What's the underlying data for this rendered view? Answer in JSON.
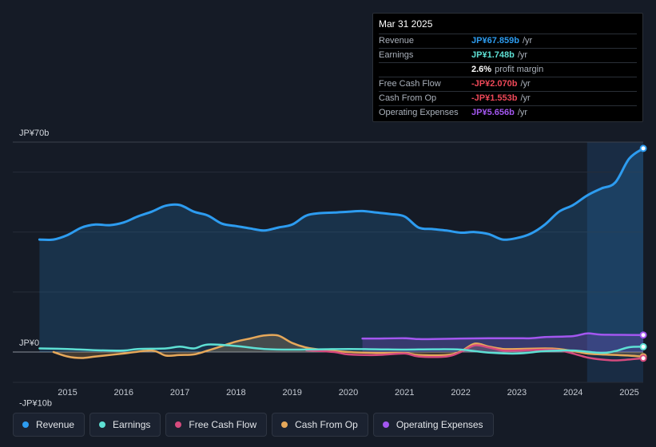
{
  "tooltip": {
    "date": "Mar 31 2025",
    "rows": [
      {
        "label": "Revenue",
        "value": "JP¥67.859b",
        "unit": "/yr",
        "color": "#2d9cf0"
      },
      {
        "label": "Earnings",
        "value": "JP¥1.748b",
        "unit": "/yr",
        "color": "#5ee0d4"
      },
      {
        "label": "",
        "value": "2.6%",
        "unit": "profit margin",
        "color": "#ffffff"
      },
      {
        "label": "Free Cash Flow",
        "value": "-JP¥2.070b",
        "unit": "/yr",
        "color": "#ee4858"
      },
      {
        "label": "Cash From Op",
        "value": "-JP¥1.553b",
        "unit": "/yr",
        "color": "#ee4858"
      },
      {
        "label": "Operating Expenses",
        "value": "JP¥5.656b",
        "unit": "/yr",
        "color": "#a357f0"
      }
    ]
  },
  "legend": [
    {
      "label": "Revenue",
      "color": "#2d9cf0"
    },
    {
      "label": "Earnings",
      "color": "#5ee0d4"
    },
    {
      "label": "Free Cash Flow",
      "color": "#d64b7e"
    },
    {
      "label": "Cash From Op",
      "color": "#e6a85a"
    },
    {
      "label": "Operating Expenses",
      "color": "#a357f0"
    }
  ],
  "chart_data": {
    "type": "line",
    "title": "",
    "xlabel": "",
    "ylabel": "",
    "ylim": [
      -10,
      70
    ],
    "y_tick_labels": [
      {
        "value": 70,
        "label": "JP¥70b"
      },
      {
        "value": 0,
        "label": "JP¥0"
      },
      {
        "value": -10,
        "label": "-JP¥10b"
      }
    ],
    "x_ticks": [
      2015,
      2016,
      2017,
      2018,
      2019,
      2020,
      2021,
      2022,
      2023,
      2024,
      2025
    ],
    "x_range": [
      2014.5,
      2025.25
    ],
    "forecast_shade_start": 2024.25,
    "series": [
      {
        "name": "Revenue",
        "color": "#2d9cf0",
        "area": true,
        "x": [
          2014.5,
          2014.75,
          2015.0,
          2015.25,
          2015.5,
          2015.75,
          2016.0,
          2016.25,
          2016.5,
          2016.75,
          2017.0,
          2017.25,
          2017.5,
          2017.75,
          2018.0,
          2018.25,
          2018.5,
          2018.75,
          2019.0,
          2019.25,
          2019.5,
          2019.75,
          2020.0,
          2020.25,
          2020.5,
          2020.75,
          2021.0,
          2021.25,
          2021.5,
          2021.75,
          2022.0,
          2022.25,
          2022.5,
          2022.75,
          2023.0,
          2023.25,
          2023.5,
          2023.75,
          2024.0,
          2024.25,
          2024.5,
          2024.75,
          2025.0,
          2025.25
        ],
        "values": [
          37.5,
          37.5,
          39.0,
          41.5,
          42.5,
          42.3,
          43.2,
          45.2,
          46.8,
          48.8,
          49.0,
          46.8,
          45.5,
          42.8,
          42.0,
          41.2,
          40.5,
          41.5,
          42.5,
          45.5,
          46.3,
          46.5,
          46.8,
          47.0,
          46.5,
          46.0,
          45.2,
          41.5,
          41.0,
          40.5,
          39.8,
          40.0,
          39.3,
          37.5,
          38.0,
          39.5,
          42.5,
          46.8,
          49.0,
          52.2,
          54.5,
          56.5,
          64.5,
          67.9
        ]
      },
      {
        "name": "Earnings",
        "color": "#5ee0d4",
        "area": false,
        "x": [
          2014.5,
          2015.0,
          2015.5,
          2016.0,
          2016.25,
          2016.75,
          2017.0,
          2017.25,
          2017.5,
          2018.0,
          2018.5,
          2019.0,
          2019.5,
          2020.0,
          2020.5,
          2021.0,
          2021.5,
          2022.0,
          2022.5,
          2023.0,
          2023.5,
          2024.0,
          2024.5,
          2024.75,
          2025.0,
          2025.25
        ],
        "values": [
          1.2,
          1.0,
          0.6,
          0.5,
          1.0,
          1.2,
          1.8,
          1.2,
          2.5,
          2.0,
          1.0,
          0.8,
          0.9,
          1.0,
          0.9,
          0.8,
          0.9,
          0.8,
          -0.2,
          -0.5,
          0.3,
          0.5,
          -0.3,
          0.3,
          1.6,
          1.75
        ]
      },
      {
        "name": "Free Cash Flow",
        "color": "#d64b7e",
        "area": false,
        "x": [
          2019.25,
          2019.75,
          2020.0,
          2020.5,
          2021.0,
          2021.25,
          2021.75,
          2022.0,
          2022.25,
          2022.5,
          2022.75,
          2023.0,
          2023.5,
          2023.75,
          2024.0,
          2024.25,
          2024.5,
          2024.75,
          2025.0,
          2025.25
        ],
        "values": [
          0.6,
          0.0,
          -0.8,
          -1.0,
          -0.5,
          -1.5,
          -1.5,
          0.0,
          2.2,
          1.5,
          0.5,
          0.5,
          0.8,
          0.6,
          -0.5,
          -1.8,
          -2.5,
          -2.8,
          -2.5,
          -2.07
        ]
      },
      {
        "name": "Cash From Op",
        "color": "#e6a85a",
        "area": true,
        "x": [
          2014.75,
          2015.0,
          2015.25,
          2015.5,
          2016.0,
          2016.5,
          2016.75,
          2017.0,
          2017.25,
          2017.5,
          2017.75,
          2018.0,
          2018.25,
          2018.5,
          2018.75,
          2019.0,
          2019.25,
          2019.5,
          2020.0,
          2020.5,
          2021.0,
          2021.25,
          2021.75,
          2022.0,
          2022.25,
          2022.5,
          2022.75,
          2023.0,
          2023.5,
          2023.75,
          2024.0,
          2024.25,
          2024.5,
          2025.0,
          2025.25
        ],
        "values": [
          0.0,
          -1.5,
          -2.0,
          -1.5,
          -0.5,
          0.5,
          -1.2,
          -1.0,
          -0.8,
          0.5,
          2.0,
          3.5,
          4.5,
          5.5,
          5.5,
          3.0,
          1.5,
          0.8,
          0.0,
          -0.3,
          -0.3,
          -1.0,
          -1.0,
          0.2,
          2.8,
          1.8,
          1.0,
          1.0,
          1.2,
          1.0,
          0.3,
          -0.5,
          -0.8,
          -1.2,
          -1.55
        ]
      },
      {
        "name": "Operating Expenses",
        "color": "#a357f0",
        "area": true,
        "x": [
          2020.25,
          2020.5,
          2021.0,
          2021.25,
          2021.5,
          2022.0,
          2022.5,
          2023.0,
          2023.25,
          2023.5,
          2024.0,
          2024.25,
          2024.5,
          2025.0,
          2025.25
        ],
        "values": [
          4.5,
          4.5,
          4.6,
          4.3,
          4.3,
          4.5,
          4.6,
          4.6,
          4.6,
          5.0,
          5.3,
          6.2,
          5.8,
          5.7,
          5.66
        ]
      }
    ]
  }
}
